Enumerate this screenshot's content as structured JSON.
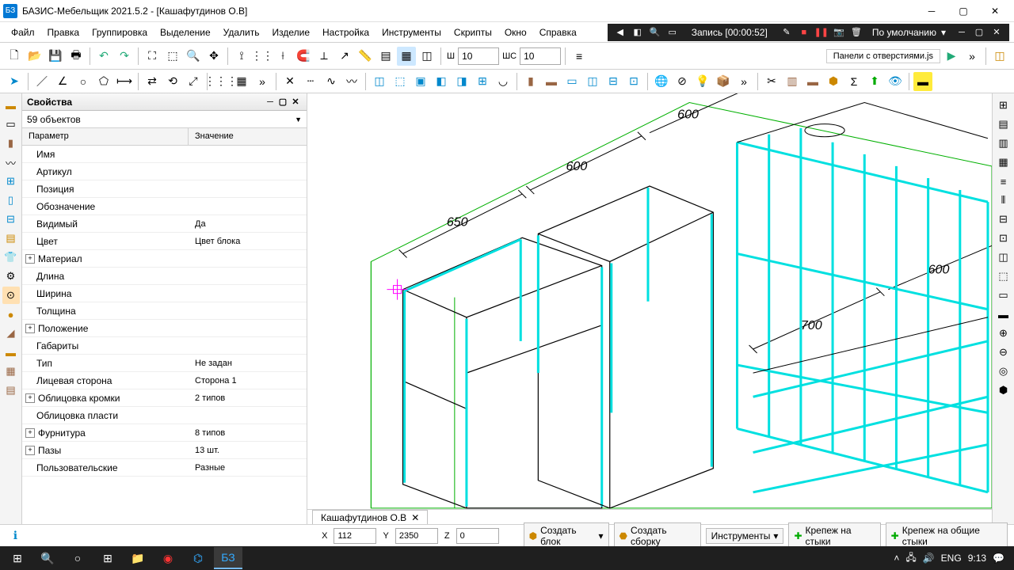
{
  "title": "БАЗИС-Мебельщик 2021.5.2 - [Кашафутдинов О.В]",
  "menu": [
    "Файл",
    "Правка",
    "Группировка",
    "Выделение",
    "Удалить",
    "Изделие",
    "Настройка",
    "Инструменты",
    "Скрипты",
    "Окно",
    "Справка"
  ],
  "recording": {
    "label": "Запись [00:00:52]",
    "preset": "По умолчанию"
  },
  "toolbar": {
    "w_label": "Ш",
    "w_val": "10",
    "h_label": "ШС",
    "h_val": "10",
    "script_tab": "Панели с отверстиями.js"
  },
  "props": {
    "title": "Свойства",
    "selection": "59 объектов",
    "col1": "Параметр",
    "col2": "Значение",
    "rows": [
      {
        "k": "Имя",
        "v": ""
      },
      {
        "k": "Артикул",
        "v": ""
      },
      {
        "k": "Позиция",
        "v": ""
      },
      {
        "k": "Обозначение",
        "v": ""
      },
      {
        "k": "Видимый",
        "v": "Да"
      },
      {
        "k": "Цвет",
        "v": "Цвет блока"
      },
      {
        "k": "Материал",
        "v": "",
        "exp": true
      },
      {
        "k": "Длина",
        "v": ""
      },
      {
        "k": "Ширина",
        "v": ""
      },
      {
        "k": "Толщина",
        "v": ""
      },
      {
        "k": "Положение",
        "v": "",
        "exp": true
      },
      {
        "k": "Габариты",
        "v": ""
      },
      {
        "k": "Тип",
        "v": "Не задан"
      },
      {
        "k": "Лицевая сторона",
        "v": "Сторона 1"
      },
      {
        "k": "Облицовка кромки",
        "v": "2 типов",
        "exp": true
      },
      {
        "k": "Облицовка пласти",
        "v": ""
      },
      {
        "k": "Фурнитура",
        "v": "8 типов",
        "exp": true
      },
      {
        "k": "Пазы",
        "v": "13 шт.",
        "exp": true
      },
      {
        "k": "Пользовательские",
        "v": "Разные"
      }
    ]
  },
  "doc_tab": "Кашафутдинов О.В",
  "status": {
    "x_label": "X",
    "x": "112",
    "y_label": "Y",
    "y": "2350",
    "z_label": "Z",
    "z": "0",
    "btns": [
      "Создать блок",
      "Создать сборку",
      "Инструменты",
      "Крепеж на стыки",
      "Крепеж на общие стыки"
    ]
  },
  "dims": {
    "d1": "650",
    "d2": "600",
    "d3": "600",
    "d4": "700",
    "d5": "600",
    "d6": "700"
  },
  "colors": {
    "sel": "#00e0e0",
    "outline": "#000",
    "construction": "#00b000",
    "bg": "#ffffff"
  },
  "tray": {
    "lang": "ENG",
    "time": "9:13"
  }
}
